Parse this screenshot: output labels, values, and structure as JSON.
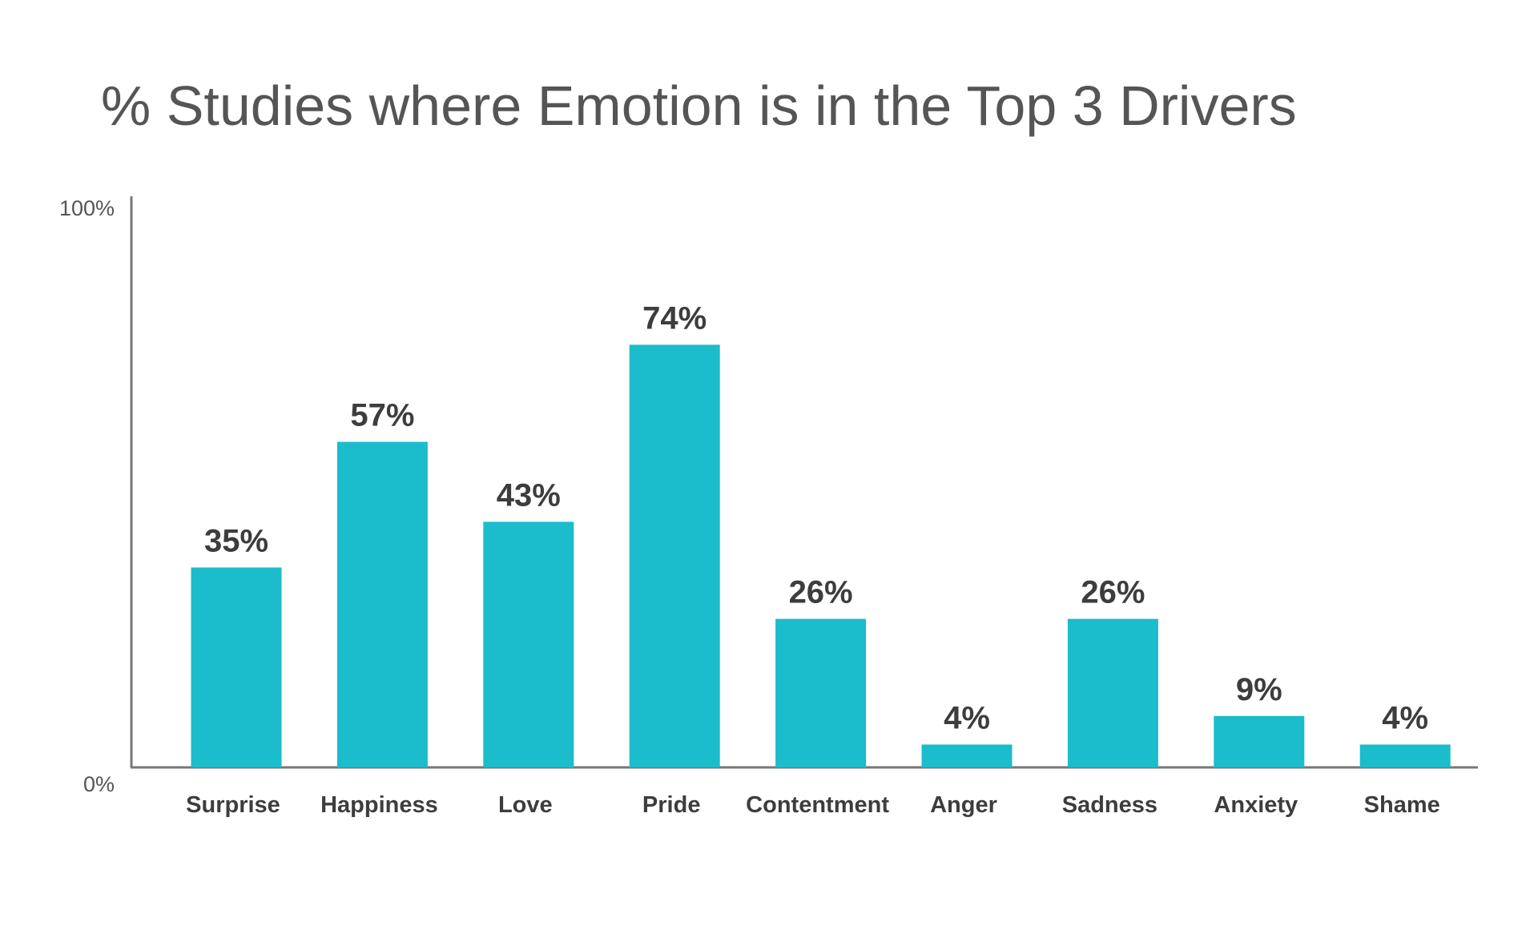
{
  "chart_data": {
    "type": "bar",
    "title": "% Studies where Emotion is in the Top 3 Drivers",
    "xlabel": "",
    "ylabel": "",
    "categories": [
      "Surprise",
      "Happiness",
      "Love",
      "Pride",
      "Contentment",
      "Anger",
      "Sadness",
      "Anxiety",
      "Shame"
    ],
    "values": [
      35,
      57,
      43,
      74,
      26,
      4,
      26,
      9,
      4
    ],
    "data_labels": [
      "35%",
      "57%",
      "43%",
      "74%",
      "26%",
      "4%",
      "26%",
      "9%",
      "4%"
    ],
    "ylim": [
      0,
      100
    ],
    "yticks": [
      "0%",
      "100%"
    ],
    "grid": false,
    "bar_color": "#1bbccb"
  }
}
